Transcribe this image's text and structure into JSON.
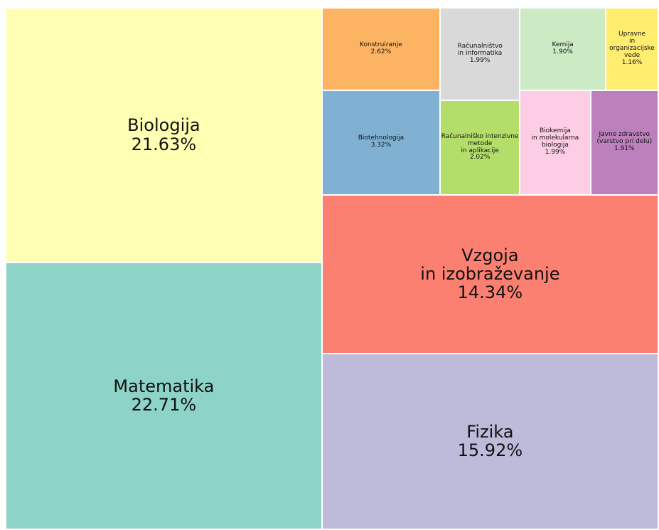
{
  "chart_data": {
    "type": "treemap",
    "categories": [
      "Matematika",
      "Biologija",
      "Fizika",
      "Vzgoja\nin izobraževanje",
      "Biotehnologija",
      "Konstruiranje",
      "Računalniško intenzivne metode\nin aplikacije",
      "Računalništvo\nin informatika",
      "Biokemija\nin molekularna biologija",
      "Javno zdravstvo (varstvo pri delu)",
      "Kemija",
      "Upravne\nin organizacijske vede"
    ],
    "values": [
      22.71,
      21.63,
      15.92,
      14.34,
      3.32,
      2.62,
      2.02,
      1.99,
      1.99,
      1.91,
      1.9,
      1.16
    ],
    "value_labels": [
      "22.71%",
      "21.63%",
      "15.92%",
      "14.34%",
      "3.32%",
      "2.62%",
      "2.02%",
      "1.99%",
      "1.99%",
      "1.91%",
      "1.90%",
      "1.16%"
    ],
    "colors": [
      "#8dd3c7",
      "#ffffb3",
      "#bebada",
      "#fb8072",
      "#80b1d3",
      "#fdb462",
      "#b3de69",
      "#d9d9d9",
      "#fccde5",
      "#bc80bd",
      "#ccebc5",
      "#ffed6f"
    ]
  }
}
